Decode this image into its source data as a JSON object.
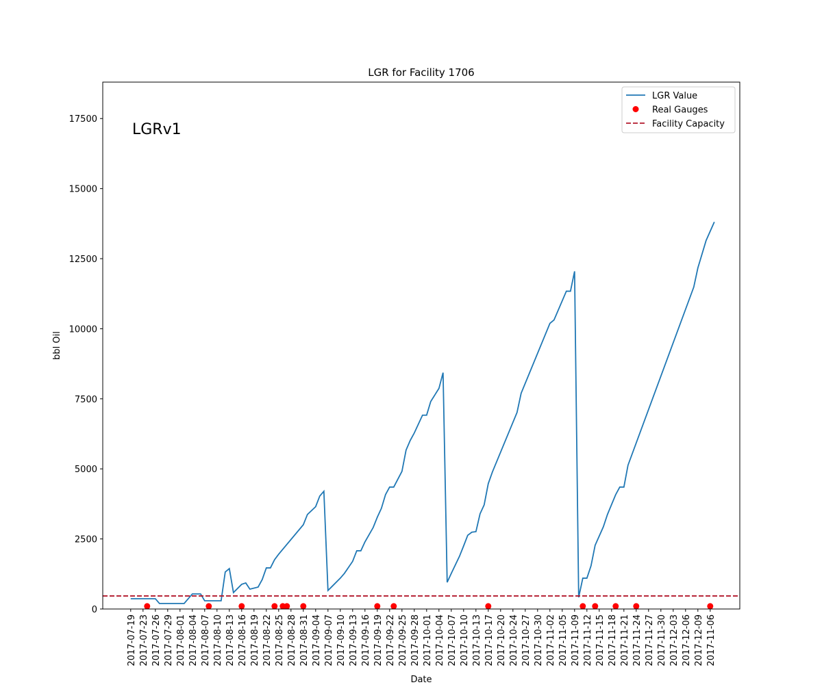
{
  "chart_data": {
    "type": "line",
    "title": "LGR for Facility 1706",
    "xlabel": "Date",
    "ylabel": "bbl Oil",
    "annotation": "LGRv1",
    "legend": "upper right",
    "xlim": [
      -6.8,
      148.2
    ],
    "ylim": [
      0,
      18800
    ],
    "yticks": [
      0,
      2500,
      5000,
      7500,
      10000,
      12500,
      15000,
      17500
    ],
    "xticks": [
      {
        "value": 0,
        "label": "2017-07-19"
      },
      {
        "value": 3,
        "label": "2017-07-23"
      },
      {
        "value": 6,
        "label": "2017-07-26"
      },
      {
        "value": 9,
        "label": "2017-07-29"
      },
      {
        "value": 12,
        "label": "2017-08-01"
      },
      {
        "value": 15,
        "label": "2017-08-04"
      },
      {
        "value": 18,
        "label": "2017-08-07"
      },
      {
        "value": 21,
        "label": "2017-08-10"
      },
      {
        "value": 24,
        "label": "2017-08-13"
      },
      {
        "value": 27,
        "label": "2017-08-16"
      },
      {
        "value": 30,
        "label": "2017-08-19"
      },
      {
        "value": 33,
        "label": "2017-08-22"
      },
      {
        "value": 36,
        "label": "2017-08-25"
      },
      {
        "value": 39,
        "label": "2017-08-28"
      },
      {
        "value": 42,
        "label": "2017-08-31"
      },
      {
        "value": 45,
        "label": "2017-09-04"
      },
      {
        "value": 48,
        "label": "2017-09-07"
      },
      {
        "value": 51,
        "label": "2017-09-10"
      },
      {
        "value": 54,
        "label": "2017-09-13"
      },
      {
        "value": 57,
        "label": "2017-09-16"
      },
      {
        "value": 60,
        "label": "2017-09-19"
      },
      {
        "value": 63,
        "label": "2017-09-22"
      },
      {
        "value": 66,
        "label": "2017-09-25"
      },
      {
        "value": 69,
        "label": "2017-09-28"
      },
      {
        "value": 72,
        "label": "2017-10-01"
      },
      {
        "value": 75,
        "label": "2017-10-04"
      },
      {
        "value": 78,
        "label": "2017-10-07"
      },
      {
        "value": 81,
        "label": "2017-10-10"
      },
      {
        "value": 84,
        "label": "2017-10-13"
      },
      {
        "value": 87,
        "label": "2017-10-17"
      },
      {
        "value": 90,
        "label": "2017-10-20"
      },
      {
        "value": 93,
        "label": "2017-10-24"
      },
      {
        "value": 96,
        "label": "2017-10-27"
      },
      {
        "value": 99,
        "label": "2017-10-30"
      },
      {
        "value": 102,
        "label": "2017-11-02"
      },
      {
        "value": 105,
        "label": "2017-11-05"
      },
      {
        "value": 108,
        "label": "2017-11-09"
      },
      {
        "value": 111,
        "label": "2017-11-12"
      },
      {
        "value": 114,
        "label": "2017-11-15"
      },
      {
        "value": 117,
        "label": "2017-11-18"
      },
      {
        "value": 120,
        "label": "2017-11-21"
      },
      {
        "value": 123,
        "label": "2017-11-24"
      },
      {
        "value": 126,
        "label": "2017-11-27"
      },
      {
        "value": 129,
        "label": "2017-11-30"
      },
      {
        "value": 132,
        "label": "2017-12-03"
      },
      {
        "value": 135,
        "label": "2017-12-06"
      },
      {
        "value": 138,
        "label": "2017-12-09"
      },
      {
        "value": 141,
        "label": "2017-11-06"
      }
    ],
    "series": [
      {
        "name": "LGR Value",
        "kind": "line",
        "color": "#1f77b4",
        "x": [
          0,
          6,
          7,
          13,
          15,
          17,
          18,
          22,
          23,
          24,
          25,
          27,
          28,
          29,
          31,
          32,
          33,
          34,
          35,
          36,
          42,
          43,
          45,
          46,
          47,
          48,
          49,
          51,
          52,
          54,
          55,
          56,
          57,
          59,
          60,
          61,
          62,
          63,
          64,
          66,
          67,
          68,
          69,
          71,
          72,
          73,
          75,
          76,
          77,
          78,
          80,
          81,
          82,
          83,
          84,
          85,
          86,
          87,
          88,
          94,
          95,
          102,
          103,
          106,
          107,
          108,
          109,
          110,
          111,
          112,
          113,
          115,
          116,
          118,
          119,
          120,
          121,
          137,
          138,
          140,
          142
        ],
        "values": [
          367,
          367,
          196,
          196,
          538,
          538,
          293,
          293,
          1320,
          1442,
          587,
          880,
          929,
          709,
          782,
          1051,
          1466,
          1466,
          1760,
          1955,
          3006,
          3373,
          3650,
          4030,
          4200,
          660,
          807,
          1100,
          1271,
          1700,
          2077,
          2077,
          2395,
          2908,
          3275,
          3593,
          4081,
          4350,
          4350,
          4912,
          5670,
          6012,
          6281,
          6916,
          6916,
          7405,
          7870,
          8432,
          953,
          1271,
          1882,
          2249,
          2630,
          2740,
          2760,
          3397,
          3715,
          4473,
          4888,
          7014,
          7699,
          10192,
          10314,
          11340,
          11340,
          12049,
          416,
          1100,
          1100,
          1540,
          2273,
          2933,
          3373,
          4081,
          4350,
          4350,
          5132,
          11487,
          12171,
          13148,
          13809
        ]
      },
      {
        "name": "Real Gauges",
        "kind": "scatter",
        "color": "#ff0000",
        "x": [
          4,
          19,
          27,
          35,
          37,
          38,
          42,
          60,
          64,
          87,
          110,
          113,
          118,
          123,
          141
        ],
        "values": [
          100,
          100,
          100,
          100,
          100,
          100,
          100,
          100,
          100,
          100,
          100,
          100,
          100,
          100,
          100
        ]
      },
      {
        "name": "Facility Capacity",
        "kind": "hline",
        "color": "#b2182b",
        "values": [
          465
        ]
      }
    ]
  }
}
